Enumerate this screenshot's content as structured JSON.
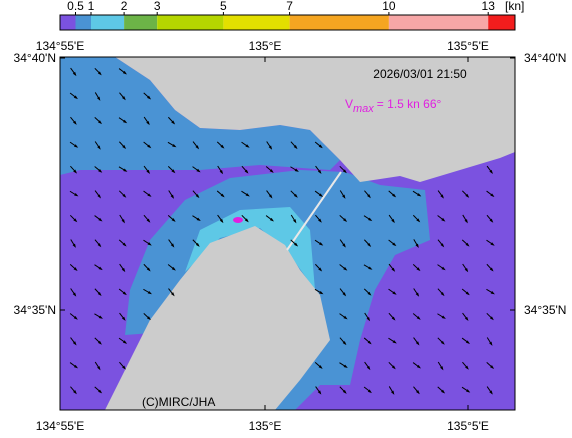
{
  "colorbar": {
    "ticks": [
      0.5,
      1,
      2,
      3,
      5,
      7,
      10,
      13
    ],
    "colors": [
      "#7b52e0",
      "#4a93d4",
      "#5ec8e6",
      "#6cb447",
      "#b5d600",
      "#e3df00",
      "#f5a521",
      "#f7a7a7",
      "#f21d1d"
    ],
    "unit": "[kn]"
  },
  "axes": {
    "x_labels": [
      "134°55'E",
      "135°E",
      "135°5'E"
    ],
    "y_labels": [
      "34°40'N",
      "34°35'N"
    ]
  },
  "timestamp": "2026/03/01 21:50",
  "vmax": {
    "symbol": "V",
    "subscript": "max",
    "text": "= 1.5 kn 66°"
  },
  "credit": "(C)MIRC/JHA"
}
